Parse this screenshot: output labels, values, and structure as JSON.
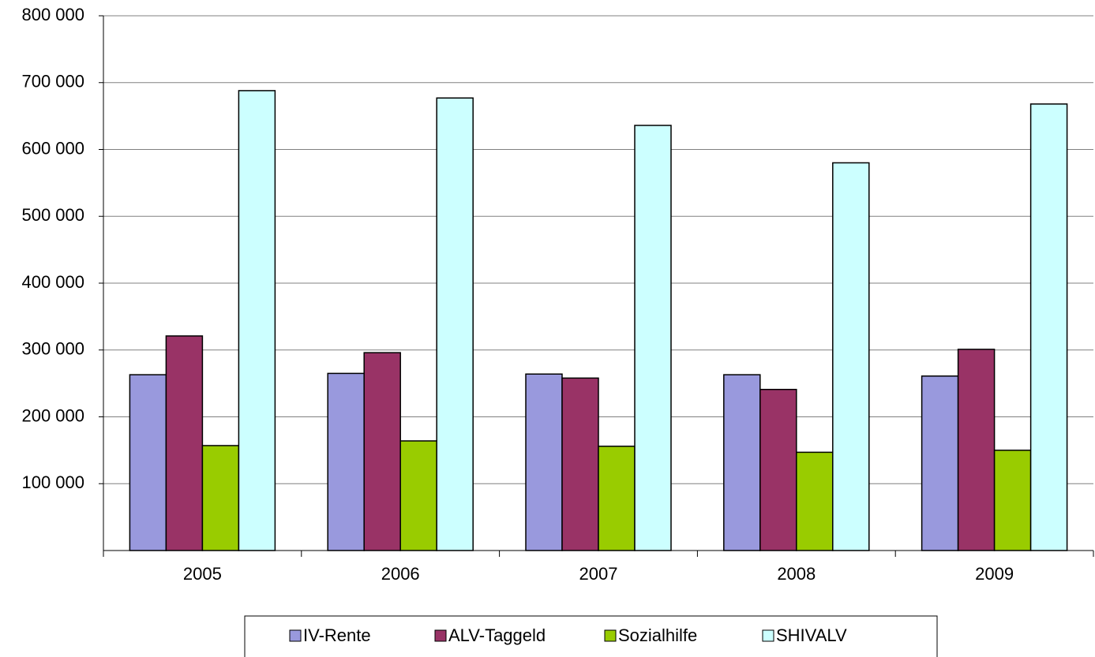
{
  "chart_data": {
    "type": "bar",
    "categories": [
      "2005",
      "2006",
      "2007",
      "2008",
      "2009"
    ],
    "series": [
      {
        "name": "IV-Rente",
        "color": "#9999dd",
        "values": [
          263000,
          265000,
          264000,
          263000,
          261000
        ]
      },
      {
        "name": "ALV-Taggeld",
        "color": "#993366",
        "values": [
          321000,
          296000,
          258000,
          241000,
          301000
        ]
      },
      {
        "name": "Sozialhilfe",
        "color": "#99cc00",
        "values": [
          157000,
          164000,
          156000,
          147000,
          150000
        ]
      },
      {
        "name": "SHIVALV",
        "color": "#ccffff",
        "values": [
          688000,
          677000,
          636000,
          580000,
          668000
        ]
      }
    ],
    "ylim": [
      0,
      800000
    ],
    "yticks": [
      {
        "value": 100000,
        "label": "100 000"
      },
      {
        "value": 200000,
        "label": "200 000"
      },
      {
        "value": 300000,
        "label": "300 000"
      },
      {
        "value": 400000,
        "label": "400 000"
      },
      {
        "value": 500000,
        "label": "500 000"
      },
      {
        "value": 600000,
        "label": "600 000"
      },
      {
        "value": 700000,
        "label": "700 000"
      },
      {
        "value": 800000,
        "label": "800 000"
      }
    ],
    "grid": true,
    "legend": "bottom"
  }
}
